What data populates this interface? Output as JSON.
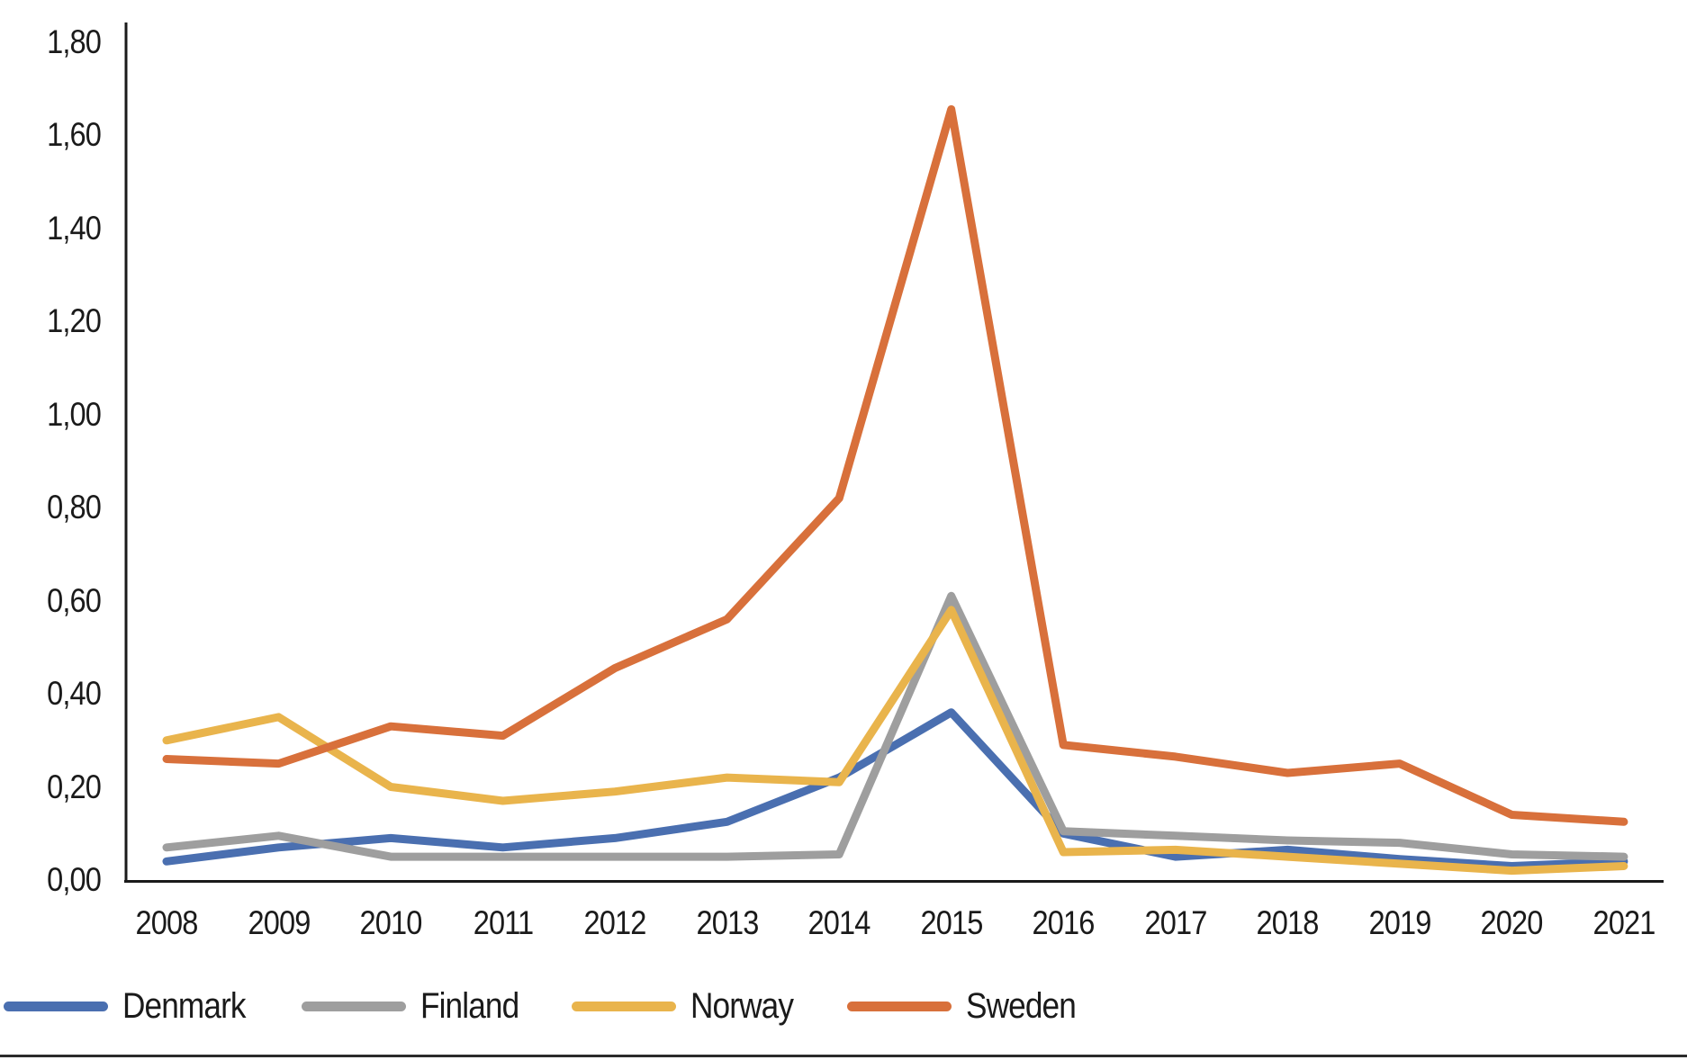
{
  "chart": {
    "y_ticks": [
      "0,00",
      "0,20",
      "0,40",
      "0,60",
      "0,80",
      "1,00",
      "1,20",
      "1,40",
      "1,60",
      "1,80"
    ],
    "axis_color": "#1a1a1a",
    "background": "#ffffff"
  },
  "chart_data": {
    "type": "line",
    "title": "",
    "xlabel": "",
    "ylabel": "",
    "categories": [
      "2008",
      "2009",
      "2010",
      "2011",
      "2012",
      "2013",
      "2014",
      "2015",
      "2016",
      "2017",
      "2018",
      "2019",
      "2020",
      "2021"
    ],
    "series": [
      {
        "name": "Denmark",
        "color": "#4A6FB0",
        "values": [
          0.04,
          0.07,
          0.09,
          0.07,
          0.09,
          0.125,
          0.22,
          0.36,
          0.1,
          0.05,
          0.065,
          0.045,
          0.03,
          0.04
        ]
      },
      {
        "name": "Finland",
        "color": "#9E9E9E",
        "values": [
          0.07,
          0.095,
          0.05,
          0.05,
          0.05,
          0.05,
          0.055,
          0.61,
          0.105,
          0.095,
          0.085,
          0.08,
          0.055,
          0.05
        ]
      },
      {
        "name": "Norway",
        "color": "#E9B44C",
        "values": [
          0.3,
          0.35,
          0.2,
          0.17,
          0.19,
          0.22,
          0.21,
          0.58,
          0.06,
          0.065,
          0.05,
          0.035,
          0.02,
          0.03
        ]
      },
      {
        "name": "Sweden",
        "color": "#D8703B",
        "values": [
          0.26,
          0.25,
          0.33,
          0.31,
          0.455,
          0.56,
          0.82,
          1.655,
          0.29,
          0.265,
          0.23,
          0.25,
          0.14,
          0.125
        ]
      }
    ],
    "ylim": [
      0,
      1.8
    ],
    "y_tick_step": 0.2,
    "decimal_separator": ",",
    "grid": false,
    "legend_position": "bottom-left"
  }
}
